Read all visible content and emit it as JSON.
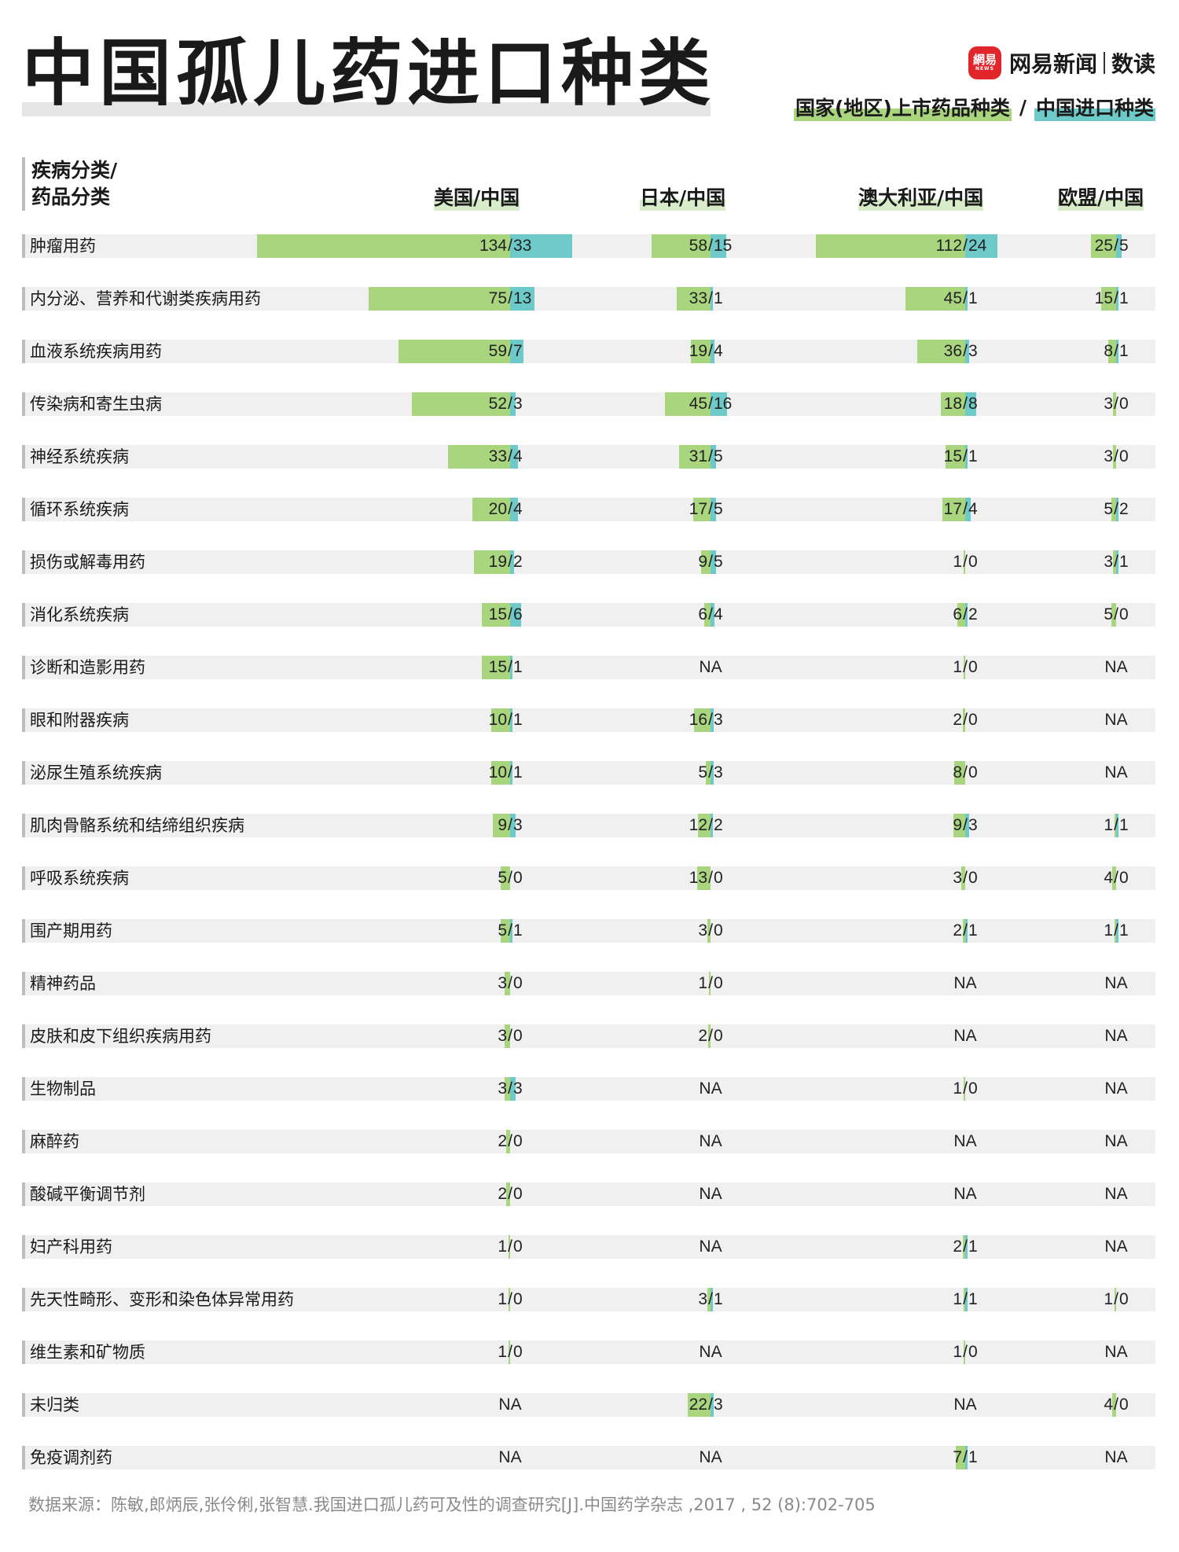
{
  "title": "中国孤儿药进口种类",
  "brand": {
    "logo_top": "網易",
    "logo_bottom": "NEWS",
    "name": "网易新闻",
    "sub": "数读"
  },
  "legend": {
    "left": "国家(地区)上市药品种类",
    "sep": "/",
    "right": "中国进口种类",
    "color_listed": "#a9d57e",
    "color_import": "#6dcac9"
  },
  "header": {
    "category_line1": "疾病分类/",
    "category_line2": "药品分类"
  },
  "columns": [
    "美国/中国",
    "日本/中国",
    "澳大利亚/中国",
    "欧盟/中国"
  ],
  "chart_data": {
    "type": "table",
    "series_names": [
      "国家(地区)上市药品种类",
      "中国进口种类"
    ],
    "columns": [
      "美国/中国",
      "日本/中国",
      "澳大利亚/中国",
      "欧盟/中国"
    ],
    "na_text": "NA",
    "rows": [
      {
        "label": "肿瘤用药",
        "values": [
          [
            134,
            33
          ],
          [
            58,
            15
          ],
          [
            112,
            24
          ],
          [
            25,
            5
          ]
        ]
      },
      {
        "label": "内分泌、营养和代谢类疾病用药",
        "values": [
          [
            75,
            13
          ],
          [
            33,
            1
          ],
          [
            45,
            1
          ],
          [
            15,
            1
          ]
        ]
      },
      {
        "label": "血液系统疾病用药",
        "values": [
          [
            59,
            7
          ],
          [
            19,
            4
          ],
          [
            36,
            3
          ],
          [
            8,
            1
          ]
        ]
      },
      {
        "label": "传染病和寄生虫病",
        "values": [
          [
            52,
            3
          ],
          [
            45,
            16
          ],
          [
            18,
            8
          ],
          [
            3,
            0
          ]
        ]
      },
      {
        "label": "神经系统疾病",
        "values": [
          [
            33,
            4
          ],
          [
            31,
            5
          ],
          [
            15,
            1
          ],
          [
            3,
            0
          ]
        ]
      },
      {
        "label": "循环系统疾病",
        "values": [
          [
            20,
            4
          ],
          [
            17,
            5
          ],
          [
            17,
            4
          ],
          [
            5,
            2
          ]
        ]
      },
      {
        "label": "损伤或解毒用药",
        "values": [
          [
            19,
            2
          ],
          [
            9,
            5
          ],
          [
            1,
            0
          ],
          [
            3,
            1
          ]
        ]
      },
      {
        "label": "消化系统疾病",
        "values": [
          [
            15,
            6
          ],
          [
            6,
            4
          ],
          [
            6,
            2
          ],
          [
            5,
            0
          ]
        ]
      },
      {
        "label": "诊断和造影用药",
        "values": [
          [
            15,
            1
          ],
          null,
          [
            1,
            0
          ],
          null
        ]
      },
      {
        "label": "眼和附器疾病",
        "values": [
          [
            10,
            1
          ],
          [
            16,
            3
          ],
          [
            2,
            0
          ],
          null
        ]
      },
      {
        "label": "泌尿生殖系统疾病",
        "values": [
          [
            10,
            1
          ],
          [
            5,
            3
          ],
          [
            8,
            0
          ],
          null
        ]
      },
      {
        "label": "肌肉骨骼系统和结缔组织疾病",
        "values": [
          [
            9,
            3
          ],
          [
            12,
            2
          ],
          [
            9,
            3
          ],
          [
            1,
            1
          ]
        ]
      },
      {
        "label": "呼吸系统疾病",
        "values": [
          [
            5,
            0
          ],
          [
            13,
            0
          ],
          [
            3,
            0
          ],
          [
            4,
            0
          ]
        ]
      },
      {
        "label": "围产期用药",
        "values": [
          [
            5,
            1
          ],
          [
            3,
            0
          ],
          [
            2,
            1
          ],
          [
            1,
            1
          ]
        ]
      },
      {
        "label": "精神药品",
        "values": [
          [
            3,
            0
          ],
          [
            1,
            0
          ],
          null,
          null
        ]
      },
      {
        "label": "皮肤和皮下组织疾病用药",
        "values": [
          [
            3,
            0
          ],
          [
            2,
            0
          ],
          null,
          null
        ]
      },
      {
        "label": "生物制品",
        "values": [
          [
            3,
            3
          ],
          null,
          [
            1,
            0
          ],
          null
        ]
      },
      {
        "label": "麻醉药",
        "values": [
          [
            2,
            0
          ],
          null,
          null,
          null
        ]
      },
      {
        "label": "酸碱平衡调节剂",
        "values": [
          [
            2,
            0
          ],
          null,
          null,
          null
        ]
      },
      {
        "label": "妇产科用药",
        "values": [
          [
            1,
            0
          ],
          null,
          [
            2,
            1
          ],
          null
        ]
      },
      {
        "label": "先天性畸形、变形和染色体异常用药",
        "values": [
          [
            1,
            0
          ],
          [
            3,
            1
          ],
          [
            1,
            1
          ],
          [
            1,
            0
          ]
        ]
      },
      {
        "label": "维生素和矿物质",
        "values": [
          [
            1,
            0
          ],
          null,
          [
            1,
            0
          ],
          null
        ]
      },
      {
        "label": "未归类",
        "values": [
          null,
          [
            22,
            3
          ],
          null,
          [
            4,
            0
          ]
        ]
      },
      {
        "label": "免疫调剂药",
        "values": [
          null,
          null,
          [
            7,
            1
          ],
          null
        ]
      }
    ]
  },
  "source": "数据来源：陈敏,郎炳辰,张伶俐,张智慧.我国进口孤儿药可及性的调查研究[J].中国药学杂志 ,2017 , 52 (8):702-705"
}
